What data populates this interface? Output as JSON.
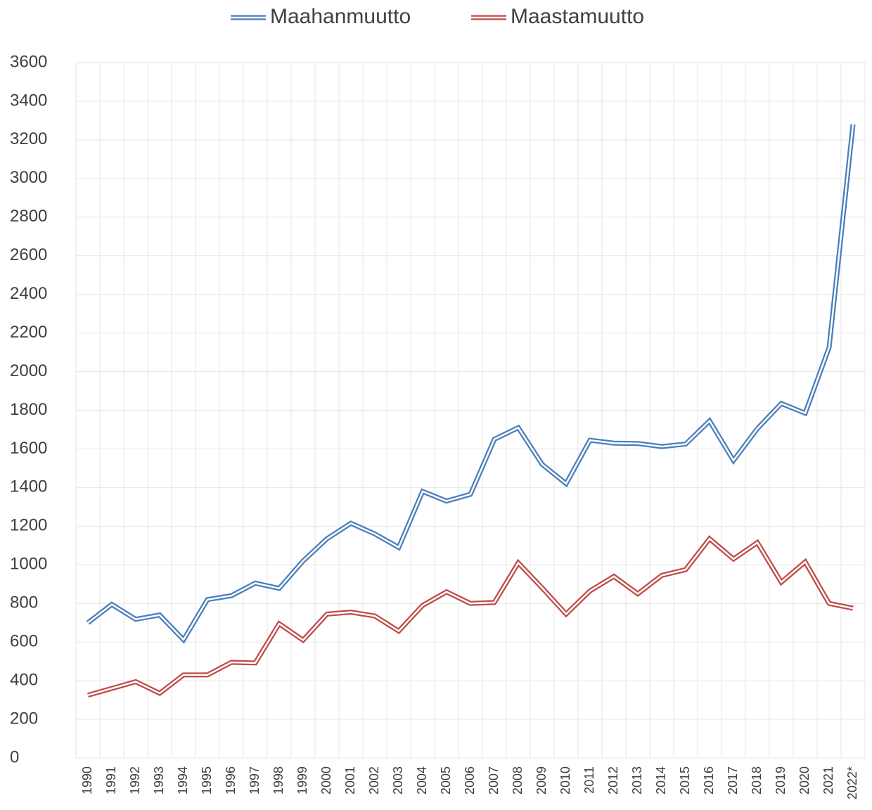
{
  "chart_data": {
    "type": "line",
    "categories": [
      "1990",
      "1991",
      "1992",
      "1993",
      "1994",
      "1995",
      "1996",
      "1997",
      "1998",
      "1999",
      "2000",
      "2001",
      "2002",
      "2003",
      "2004",
      "2005",
      "2006",
      "2007",
      "2008",
      "2009",
      "2010",
      "2011",
      "2012",
      "2013",
      "2014",
      "2015",
      "2016",
      "2017",
      "2018",
      "2019",
      "2020",
      "2021",
      "2022*"
    ],
    "series": [
      {
        "name": "Maahanmuutto",
        "color": "#4a7ebb",
        "values": [
          700,
          795,
          718,
          740,
          612,
          820,
          840,
          905,
          878,
          1020,
          1135,
          1215,
          1160,
          1090,
          1380,
          1330,
          1365,
          1650,
          1710,
          1520,
          1420,
          1645,
          1630,
          1628,
          1612,
          1625,
          1745,
          1540,
          1705,
          1835,
          1785,
          2125,
          3280
        ]
      },
      {
        "name": "Maastamuutto",
        "color": "#be4b48",
        "values": [
          325,
          360,
          395,
          335,
          430,
          430,
          495,
          492,
          695,
          610,
          745,
          755,
          735,
          657,
          790,
          860,
          800,
          805,
          1010,
          880,
          745,
          865,
          940,
          850,
          945,
          975,
          1135,
          1030,
          1115,
          910,
          1015,
          800,
          775
        ]
      }
    ],
    "ylim": [
      0,
      3600
    ],
    "yticks": [
      0,
      200,
      400,
      600,
      800,
      1000,
      1200,
      1400,
      1600,
      1800,
      2000,
      2200,
      2400,
      2600,
      2800,
      3000,
      3200,
      3400,
      3600
    ],
    "grid": true,
    "legend": "top"
  }
}
